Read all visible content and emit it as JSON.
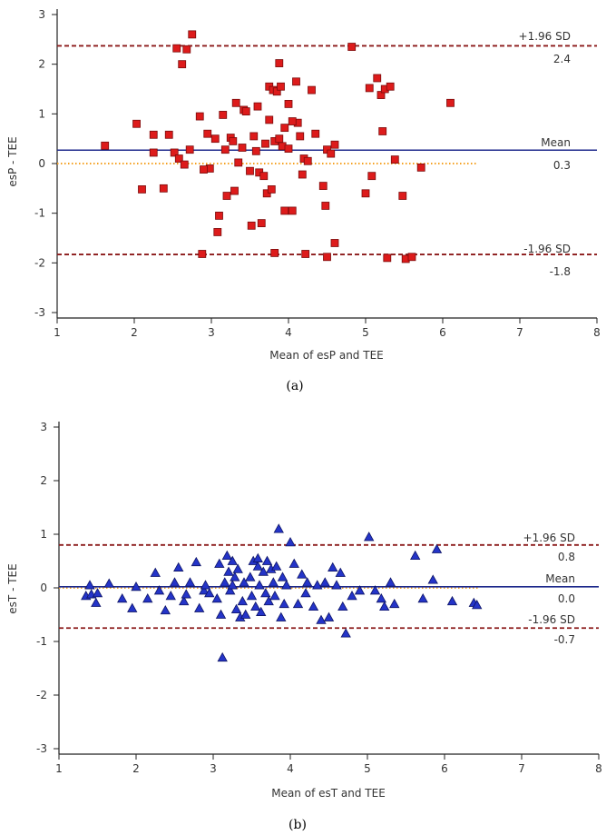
{
  "colors": {
    "axis": "#222222",
    "mean_line": "#1f2a8c",
    "limit_line": "#8b1a1a",
    "zero_line": "#f5a020",
    "marker_square": "#dd1b1b",
    "marker_square_edge": "#7a0c0c",
    "marker_triangle": "#2434c8",
    "marker_triangle_edge": "#0e1566"
  },
  "chart_data": [
    {
      "type": "scatter",
      "caption": "(a)",
      "xlabel": "Mean of esP and TEE",
      "ylabel": "esP - TEE",
      "xlim": [
        1,
        8
      ],
      "ylim": [
        -3,
        3
      ],
      "xticks": [
        "1",
        "2",
        "3",
        "4",
        "5",
        "6",
        "7",
        "8"
      ],
      "yticks": [
        "3",
        "2",
        "1",
        "0",
        "-1",
        "-2",
        "-3"
      ],
      "zero_line_xrange": [
        1,
        6.45
      ],
      "upper_loa": {
        "label": "+1.96 SD",
        "value_label": "2.4",
        "value": 2.37
      },
      "mean_line": {
        "label": "Mean",
        "value_label": "0.3",
        "value": 0.27
      },
      "lower_loa": {
        "label": "-1.96 SD",
        "value_label": "-1.8",
        "value": -1.83
      },
      "marker": "square",
      "points": [
        [
          1.62,
          0.36
        ],
        [
          2.03,
          0.8
        ],
        [
          2.1,
          -0.52
        ],
        [
          2.25,
          0.58
        ],
        [
          2.25,
          0.22
        ],
        [
          2.38,
          -0.5
        ],
        [
          2.45,
          0.58
        ],
        [
          2.52,
          0.22
        ],
        [
          2.55,
          2.32
        ],
        [
          2.62,
          2.0
        ],
        [
          2.68,
          2.3
        ],
        [
          2.72,
          0.28
        ],
        [
          2.75,
          2.6
        ],
        [
          2.58,
          0.1
        ],
        [
          2.65,
          -0.02
        ],
        [
          2.85,
          0.95
        ],
        [
          2.88,
          -1.82
        ],
        [
          2.95,
          0.6
        ],
        [
          2.98,
          -0.1
        ],
        [
          3.05,
          0.5
        ],
        [
          3.08,
          -1.38
        ],
        [
          3.1,
          -1.05
        ],
        [
          3.15,
          0.98
        ],
        [
          3.18,
          0.28
        ],
        [
          3.2,
          -0.65
        ],
        [
          3.25,
          0.52
        ],
        [
          3.28,
          0.45
        ],
        [
          3.32,
          1.22
        ],
        [
          3.3,
          -0.55
        ],
        [
          3.4,
          0.32
        ],
        [
          3.42,
          1.08
        ],
        [
          3.45,
          1.05
        ],
        [
          3.5,
          -0.15
        ],
        [
          3.52,
          -1.25
        ],
        [
          3.55,
          0.55
        ],
        [
          3.58,
          0.25
        ],
        [
          3.6,
          1.15
        ],
        [
          3.62,
          -0.18
        ],
        [
          3.65,
          -1.2
        ],
        [
          3.68,
          -0.25
        ],
        [
          3.7,
          0.4
        ],
        [
          3.72,
          -0.6
        ],
        [
          3.75,
          1.55
        ],
        [
          3.75,
          0.88
        ],
        [
          3.78,
          -0.52
        ],
        [
          3.8,
          1.48
        ],
        [
          3.82,
          0.45
        ],
        [
          3.82,
          -1.8
        ],
        [
          3.85,
          1.45
        ],
        [
          3.88,
          2.02
        ],
        [
          3.9,
          1.55
        ],
        [
          3.92,
          0.35
        ],
        [
          3.95,
          0.72
        ],
        [
          3.95,
          -0.95
        ],
        [
          4.0,
          1.2
        ],
        [
          4.0,
          0.3
        ],
        [
          4.05,
          -0.95
        ],
        [
          4.1,
          1.65
        ],
        [
          4.12,
          0.82
        ],
        [
          4.15,
          0.55
        ],
        [
          4.18,
          -0.22
        ],
        [
          4.2,
          0.1
        ],
        [
          4.25,
          0.05
        ],
        [
          4.3,
          1.48
        ],
        [
          4.22,
          -1.82
        ],
        [
          4.35,
          0.6
        ],
        [
          4.45,
          -0.45
        ],
        [
          4.48,
          -0.85
        ],
        [
          4.5,
          -1.88
        ],
        [
          4.5,
          0.28
        ],
        [
          4.55,
          0.2
        ],
        [
          4.6,
          0.38
        ],
        [
          4.6,
          -1.6
        ],
        [
          4.82,
          2.35
        ],
        [
          5.0,
          -0.6
        ],
        [
          5.05,
          1.52
        ],
        [
          5.08,
          -0.25
        ],
        [
          5.15,
          1.72
        ],
        [
          5.2,
          1.38
        ],
        [
          5.22,
          0.65
        ],
        [
          5.25,
          1.5
        ],
        [
          5.28,
          -1.9
        ],
        [
          5.32,
          1.55
        ],
        [
          5.38,
          0.08
        ],
        [
          5.48,
          -0.65
        ],
        [
          5.52,
          -1.92
        ],
        [
          5.6,
          -1.88
        ],
        [
          5.72,
          -0.08
        ],
        [
          6.1,
          1.22
        ],
        [
          3.88,
          0.5
        ],
        [
          4.05,
          0.85
        ],
        [
          3.35,
          0.02
        ],
        [
          2.9,
          -0.12
        ]
      ]
    },
    {
      "type": "scatter",
      "caption": "(b)",
      "xlabel": "Mean of esT and TEE",
      "ylabel": "esT - TEE",
      "xlim": [
        1,
        8
      ],
      "ylim": [
        -3,
        3
      ],
      "xticks": [
        "1",
        "2",
        "3",
        "4",
        "5",
        "6",
        "7",
        "8"
      ],
      "yticks": [
        "3",
        "2",
        "1",
        "0",
        "-1",
        "-2",
        "-3"
      ],
      "zero_line_xrange": [
        1,
        6.45
      ],
      "upper_loa": {
        "label": "+1.96 SD",
        "value_label": "0.8",
        "value": 0.8
      },
      "mean_line": {
        "label": "Mean",
        "value_label": "0.0",
        "value": 0.02
      },
      "lower_loa": {
        "label": "-1.96 SD",
        "value_label": "-0.7",
        "value": -0.75
      },
      "marker": "triangle",
      "points": [
        [
          1.35,
          -0.15
        ],
        [
          1.4,
          0.05
        ],
        [
          1.42,
          -0.12
        ],
        [
          1.48,
          -0.28
        ],
        [
          1.5,
          -0.1
        ],
        [
          1.65,
          0.08
        ],
        [
          1.82,
          -0.2
        ],
        [
          1.95,
          -0.38
        ],
        [
          2.0,
          0.02
        ],
        [
          2.15,
          -0.2
        ],
        [
          2.25,
          0.28
        ],
        [
          2.3,
          -0.05
        ],
        [
          2.38,
          -0.42
        ],
        [
          2.45,
          -0.15
        ],
        [
          2.5,
          0.1
        ],
        [
          2.55,
          0.38
        ],
        [
          2.62,
          -0.25
        ],
        [
          2.65,
          -0.12
        ],
        [
          2.7,
          0.1
        ],
        [
          2.78,
          0.48
        ],
        [
          2.82,
          -0.38
        ],
        [
          2.88,
          -0.05
        ],
        [
          2.9,
          0.05
        ],
        [
          2.95,
          -0.1
        ],
        [
          3.05,
          -0.2
        ],
        [
          3.08,
          0.45
        ],
        [
          3.1,
          -0.5
        ],
        [
          3.12,
          -1.3
        ],
        [
          3.15,
          0.1
        ],
        [
          3.18,
          0.6
        ],
        [
          3.2,
          0.3
        ],
        [
          3.22,
          -0.05
        ],
        [
          3.25,
          0.5
        ],
        [
          3.28,
          0.2
        ],
        [
          3.3,
          -0.4
        ],
        [
          3.32,
          0.35
        ],
        [
          3.35,
          -0.55
        ],
        [
          3.38,
          -0.25
        ],
        [
          3.4,
          0.1
        ],
        [
          3.42,
          -0.5
        ],
        [
          3.48,
          0.2
        ],
        [
          3.5,
          -0.15
        ],
        [
          3.52,
          0.5
        ],
        [
          3.55,
          -0.35
        ],
        [
          3.58,
          0.4
        ],
        [
          3.6,
          0.05
        ],
        [
          3.62,
          -0.45
        ],
        [
          3.65,
          0.3
        ],
        [
          3.68,
          -0.1
        ],
        [
          3.7,
          0.5
        ],
        [
          3.72,
          -0.25
        ],
        [
          3.75,
          0.35
        ],
        [
          3.78,
          0.1
        ],
        [
          3.8,
          -0.15
        ],
        [
          3.82,
          0.4
        ],
        [
          3.85,
          1.1
        ],
        [
          3.88,
          -0.55
        ],
        [
          3.9,
          0.2
        ],
        [
          3.92,
          -0.3
        ],
        [
          3.95,
          0.05
        ],
        [
          4.0,
          0.85
        ],
        [
          4.05,
          0.45
        ],
        [
          4.1,
          -0.3
        ],
        [
          4.15,
          0.25
        ],
        [
          4.2,
          -0.1
        ],
        [
          4.22,
          0.1
        ],
        [
          4.3,
          -0.35
        ],
        [
          4.35,
          0.05
        ],
        [
          4.4,
          -0.6
        ],
        [
          4.45,
          0.1
        ],
        [
          4.5,
          -0.55
        ],
        [
          4.55,
          0.38
        ],
        [
          4.6,
          0.05
        ],
        [
          4.65,
          0.28
        ],
        [
          4.68,
          -0.35
        ],
        [
          4.72,
          -0.85
        ],
        [
          4.8,
          -0.15
        ],
        [
          4.9,
          -0.05
        ],
        [
          5.02,
          0.95
        ],
        [
          5.1,
          -0.05
        ],
        [
          5.18,
          -0.2
        ],
        [
          5.22,
          -0.35
        ],
        [
          5.3,
          0.1
        ],
        [
          5.35,
          -0.3
        ],
        [
          5.62,
          0.6
        ],
        [
          5.72,
          -0.2
        ],
        [
          5.85,
          0.15
        ],
        [
          5.9,
          0.72
        ],
        [
          6.1,
          -0.25
        ],
        [
          6.38,
          -0.28
        ],
        [
          6.42,
          -0.32
        ],
        [
          3.58,
          0.55
        ],
        [
          3.25,
          0.05
        ]
      ]
    }
  ]
}
